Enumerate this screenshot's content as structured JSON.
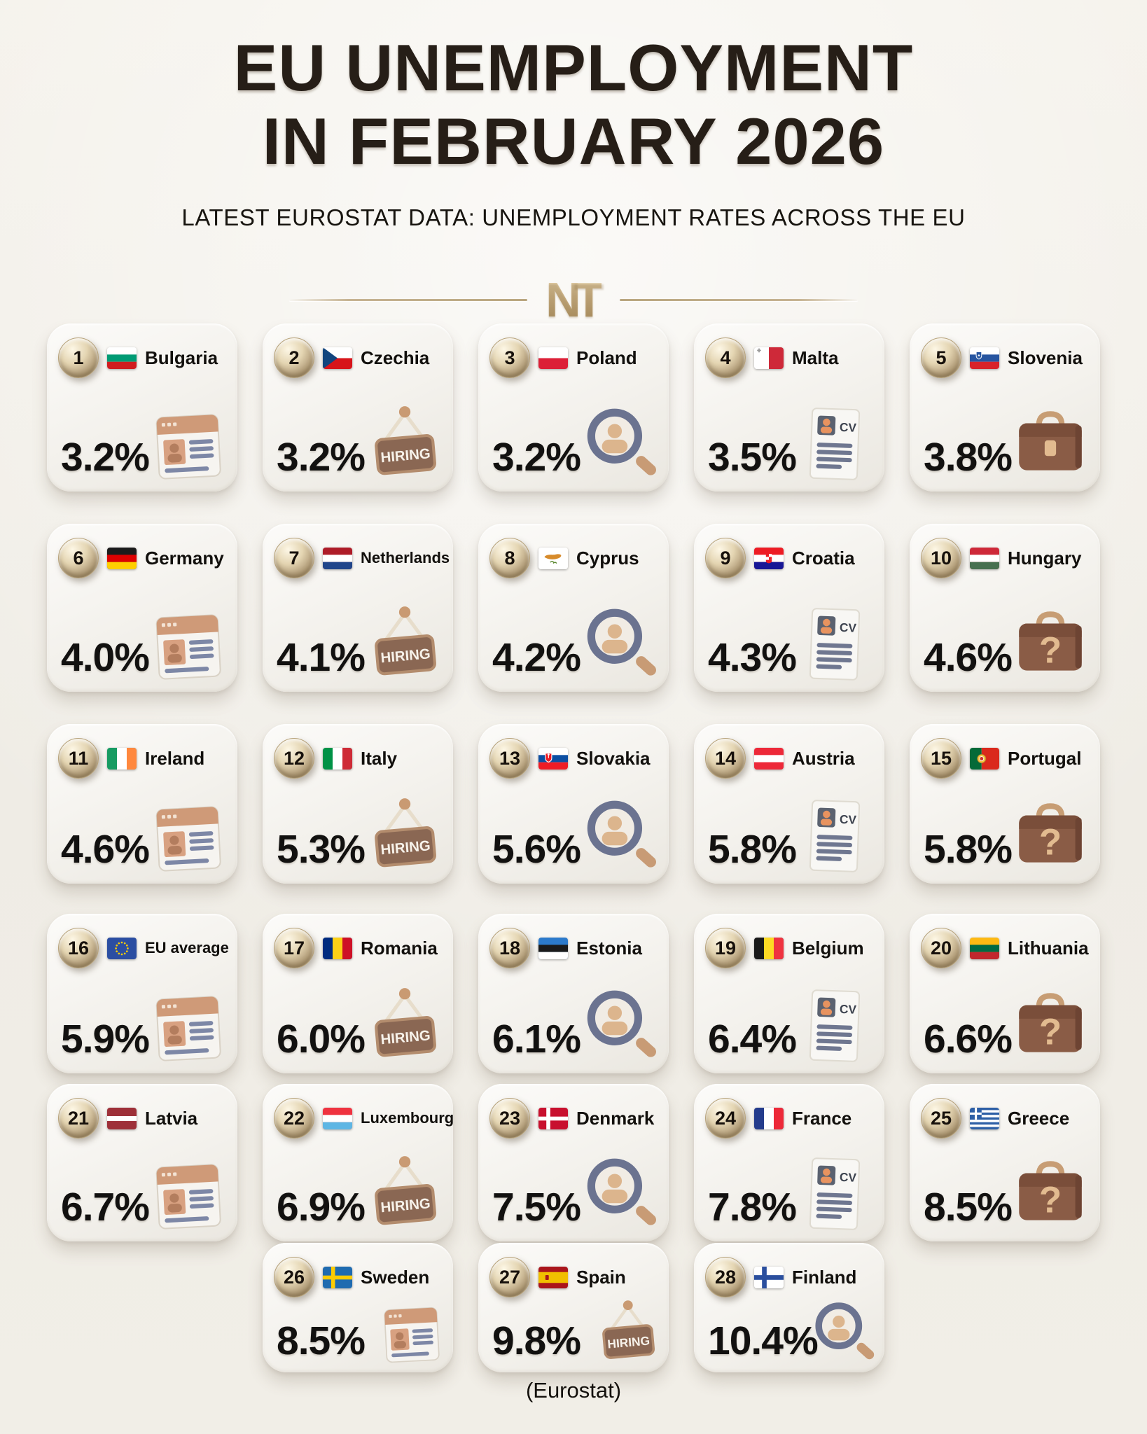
{
  "header": {
    "title_line1": "EU UNEMPLOYMENT",
    "title_line2": "IN FEBRUARY 2026",
    "subtitle": "LATEST EUROSTAT DATA: UNEMPLOYMENT RATES ACROSS THE EU",
    "logo_text": "NT"
  },
  "footer": {
    "source_label": "(Eurostat)"
  },
  "colors": {
    "gold_accent": "#c2ab83",
    "card_background": "#f4f1ec",
    "page_background": "#f1eee7",
    "text_dark": "#17130f",
    "sign_brown": "#8a6753"
  },
  "cards": [
    {
      "rank": "1",
      "country": "Bulgaria",
      "rate": "3.2%",
      "flag": "bulgaria",
      "icon": "job-board-icon"
    },
    {
      "rank": "2",
      "country": "Czechia",
      "rate": "3.2%",
      "flag": "czechia",
      "icon": "hiring-sign-icon",
      "icon_label": "HIRING"
    },
    {
      "rank": "3",
      "country": "Poland",
      "rate": "3.2%",
      "flag": "poland",
      "icon": "search-person-icon"
    },
    {
      "rank": "4",
      "country": "Malta",
      "rate": "3.5%",
      "flag": "malta",
      "icon": "cv-document-icon",
      "icon_label": "CV"
    },
    {
      "rank": "5",
      "country": "Slovenia",
      "rate": "3.8%",
      "flag": "slovenia",
      "icon": "briefcase-icon"
    },
    {
      "rank": "6",
      "country": "Germany",
      "rate": "4.0%",
      "flag": "germany",
      "icon": "job-board-icon"
    },
    {
      "rank": "7",
      "country": "Netherlands",
      "rate": "4.1%",
      "flag": "netherlands",
      "icon": "hiring-sign-icon",
      "icon_label": "HIRING"
    },
    {
      "rank": "8",
      "country": "Cyprus",
      "rate": "4.2%",
      "flag": "cyprus",
      "icon": "search-person-icon"
    },
    {
      "rank": "9",
      "country": "Croatia",
      "rate": "4.3%",
      "flag": "croatia",
      "icon": "cv-document-icon",
      "icon_label": "CV"
    },
    {
      "rank": "10",
      "country": "Hungary",
      "rate": "4.6%",
      "flag": "hungary",
      "icon": "briefcase-question-icon"
    },
    {
      "rank": "11",
      "country": "Ireland",
      "rate": "4.6%",
      "flag": "ireland",
      "icon": "job-board-icon"
    },
    {
      "rank": "12",
      "country": "Italy",
      "rate": "5.3%",
      "flag": "italy",
      "icon": "hiring-sign-icon",
      "icon_label": "HIRING"
    },
    {
      "rank": "13",
      "country": "Slovakia",
      "rate": "5.6%",
      "flag": "slovakia",
      "icon": "search-person-icon"
    },
    {
      "rank": "14",
      "country": "Austria",
      "rate": "5.8%",
      "flag": "austria",
      "icon": "cv-document-icon",
      "icon_label": "CV"
    },
    {
      "rank": "15",
      "country": "Portugal",
      "rate": "5.8%",
      "flag": "portugal",
      "icon": "briefcase-question-icon"
    },
    {
      "rank": "16",
      "country": "EU average",
      "rate": "5.9%",
      "flag": "eu",
      "icon": "job-board-icon"
    },
    {
      "rank": "17",
      "country": "Romania",
      "rate": "6.0%",
      "flag": "romania",
      "icon": "hiring-sign-icon",
      "icon_label": "HIRING"
    },
    {
      "rank": "18",
      "country": "Estonia",
      "rate": "6.1%",
      "flag": "estonia",
      "icon": "search-person-icon"
    },
    {
      "rank": "19",
      "country": "Belgium",
      "rate": "6.4%",
      "flag": "belgium",
      "icon": "cv-document-icon",
      "icon_label": "CV"
    },
    {
      "rank": "20",
      "country": "Lithuania",
      "rate": "6.6%",
      "flag": "lithuania",
      "icon": "briefcase-question-icon"
    },
    {
      "rank": "21",
      "country": "Latvia",
      "rate": "6.7%",
      "flag": "latvia",
      "icon": "job-board-icon"
    },
    {
      "rank": "22",
      "country": "Luxembourg",
      "rate": "6.9%",
      "flag": "luxembourg",
      "icon": "hiring-sign-icon",
      "icon_label": "HIRING"
    },
    {
      "rank": "23",
      "country": "Denmark",
      "rate": "7.5%",
      "flag": "denmark",
      "icon": "search-person-icon"
    },
    {
      "rank": "24",
      "country": "France",
      "rate": "7.8%",
      "flag": "france",
      "icon": "cv-document-icon",
      "icon_label": "CV"
    },
    {
      "rank": "25",
      "country": "Greece",
      "rate": "8.5%",
      "flag": "greece",
      "icon": "briefcase-question-icon"
    },
    {
      "rank": "26",
      "country": "Sweden",
      "rate": "8.5%",
      "flag": "sweden",
      "icon": "job-board-icon"
    },
    {
      "rank": "27",
      "country": "Spain",
      "rate": "9.8%",
      "flag": "spain",
      "icon": "hiring-sign-icon",
      "icon_label": "HIRING"
    },
    {
      "rank": "28",
      "country": "Finland",
      "rate": "10.4%",
      "flag": "finland",
      "icon": "search-person-icon"
    }
  ],
  "chart_data": {
    "type": "table",
    "title": "EU UNEMPLOYMENT IN FEBRUARY 2026",
    "subtitle": "LATEST EUROSTAT DATA: UNEMPLOYMENT RATES ACROSS THE EU",
    "unit": "%",
    "source": "Eurostat",
    "categories": [
      "Bulgaria",
      "Czechia",
      "Poland",
      "Malta",
      "Slovenia",
      "Germany",
      "Netherlands",
      "Cyprus",
      "Croatia",
      "Hungary",
      "Ireland",
      "Italy",
      "Slovakia",
      "Austria",
      "Portugal",
      "EU average",
      "Romania",
      "Estonia",
      "Belgium",
      "Lithuania",
      "Latvia",
      "Luxembourg",
      "Denmark",
      "France",
      "Greece",
      "Sweden",
      "Spain",
      "Finland"
    ],
    "values": [
      3.2,
      3.2,
      3.2,
      3.5,
      3.8,
      4.0,
      4.1,
      4.2,
      4.3,
      4.6,
      4.6,
      5.3,
      5.6,
      5.8,
      5.8,
      5.9,
      6.0,
      6.1,
      6.4,
      6.6,
      6.7,
      6.9,
      7.5,
      7.8,
      8.5,
      8.5,
      9.8,
      10.4
    ],
    "ranks": [
      1,
      2,
      3,
      4,
      5,
      6,
      7,
      8,
      9,
      10,
      11,
      12,
      13,
      14,
      15,
      16,
      17,
      18,
      19,
      20,
      21,
      22,
      23,
      24,
      25,
      26,
      27,
      28
    ]
  }
}
